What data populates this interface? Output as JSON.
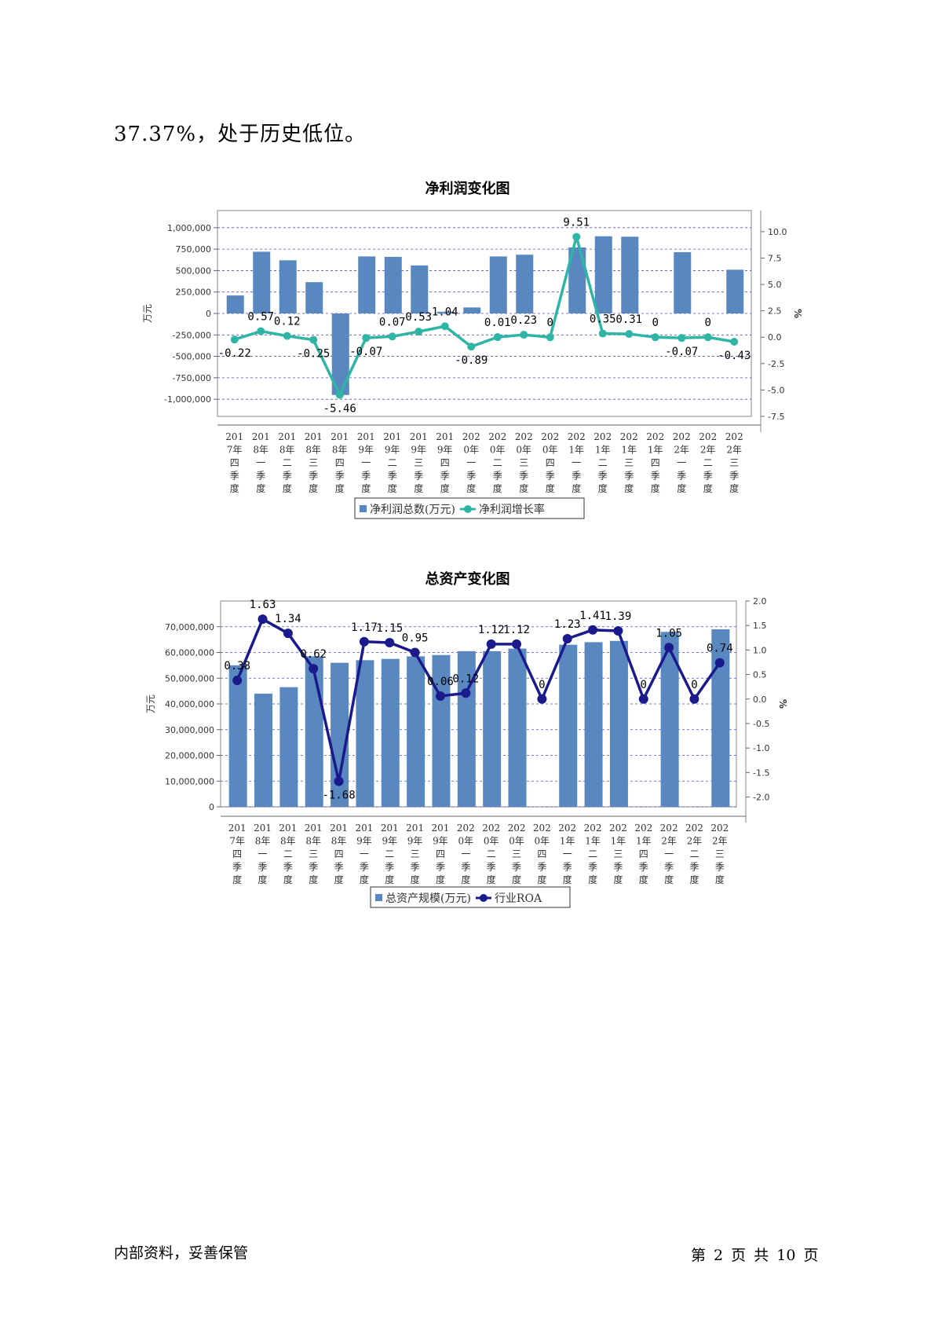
{
  "intro_text": "37.37%，处于历史低位。",
  "footer": {
    "left": "内部资料，妥善保管",
    "right": "第 2 页  共 10 页"
  },
  "chart_data": [
    {
      "type": "bar",
      "title": "净利润变化图",
      "categories": [
        "2017年四季度",
        "2018年一季度",
        "2018年二季度",
        "2018年三季度",
        "2018年四季度",
        "2019年一季度",
        "2019年二季度",
        "2019年三季度",
        "2019年四季度",
        "2020年一季度",
        "2020年二季度",
        "2020年三季度",
        "2020年四季度",
        "2021年一季度",
        "2021年二季度",
        "2021年三季度",
        "2021年四季度",
        "2022年一季度",
        "2022年二季度",
        "2022年三季度"
      ],
      "category_lines": [
        [
          "201",
          "7年",
          "四",
          "季",
          "度"
        ],
        [
          "201",
          "8年",
          "一",
          "季",
          "度"
        ],
        [
          "201",
          "8年",
          "二",
          "季",
          "度"
        ],
        [
          "201",
          "8年",
          "三",
          "季",
          "度"
        ],
        [
          "201",
          "8年",
          "四",
          "季",
          "度"
        ],
        [
          "201",
          "9年",
          "一",
          "季",
          "度"
        ],
        [
          "201",
          "9年",
          "二",
          "季",
          "度"
        ],
        [
          "201",
          "9年",
          "三",
          "季",
          "度"
        ],
        [
          "201",
          "9年",
          "四",
          "季",
          "度"
        ],
        [
          "202",
          "0年",
          "一",
          "季",
          "度"
        ],
        [
          "202",
          "0年",
          "二",
          "季",
          "度"
        ],
        [
          "202",
          "0年",
          "三",
          "季",
          "度"
        ],
        [
          "202",
          "0年",
          "四",
          "季",
          "度"
        ],
        [
          "202",
          "1年",
          "一",
          "季",
          "度"
        ],
        [
          "202",
          "1年",
          "二",
          "季",
          "度"
        ],
        [
          "202",
          "1年",
          "三",
          "季",
          "度"
        ],
        [
          "202",
          "1年",
          "四",
          "季",
          "度"
        ],
        [
          "202",
          "2年",
          "一",
          "季",
          "度"
        ],
        [
          "202",
          "2年",
          "二",
          "季",
          "度"
        ],
        [
          "202",
          "2年",
          "三",
          "季",
          "度"
        ]
      ],
      "ylabel": "万元",
      "y2label": "%",
      "ylim": [
        -1200000,
        1200000
      ],
      "y2lim": [
        -7.5,
        12
      ],
      "yticks": [
        -1000000,
        -750000,
        -500000,
        -250000,
        0,
        250000,
        500000,
        750000,
        1000000
      ],
      "ytick_labels": [
        "-1,000,000",
        "-750,000",
        "-500,000",
        "-250,000",
        "0",
        "250,000",
        "500,000",
        "750,000",
        "1,000,000"
      ],
      "y2ticks": [
        -7.5,
        -5,
        -2.5,
        0,
        2.5,
        5,
        7.5,
        10
      ],
      "y2tick_labels": [
        "-7.5",
        "-5.0",
        "-2.5",
        "0.0",
        "2.5",
        "5.0",
        "7.5",
        "10.0"
      ],
      "grid": true,
      "legend_position": "bottom",
      "series": [
        {
          "name": "净利润总数(万元)",
          "kind": "bar",
          "axis": "left",
          "values": [
            210000,
            720000,
            620000,
            365000,
            -950000,
            665000,
            660000,
            560000,
            20000,
            70000,
            665000,
            685000,
            0,
            770000,
            900000,
            895000,
            0,
            715000,
            0,
            510000
          ]
        },
        {
          "name": "净利润增长率",
          "kind": "line",
          "axis": "right",
          "values": [
            -0.22,
            0.57,
            0.12,
            -0.25,
            -5.46,
            -0.07,
            0.07,
            0.53,
            1.04,
            -0.89,
            0.01,
            0.23,
            0,
            9.51,
            0.35,
            0.31,
            0,
            -0.07,
            0,
            -0.43
          ],
          "labels": [
            "-0.22",
            "0.57",
            "0.12",
            "-0.25",
            "-5.46",
            "-0.07",
            "0.07",
            "0.53",
            "1.04",
            "-0.89",
            "0.01",
            "0.23",
            "0",
            "9.51",
            "0.35",
            "0.31",
            "0",
            "-0.07",
            "0",
            "-0.43"
          ]
        }
      ],
      "colors": {
        "bar": "#5888bf",
        "line": "#2eb5a6"
      }
    },
    {
      "type": "bar",
      "title": "总资产变化图",
      "categories": [
        "2017年四季度",
        "2018年一季度",
        "2018年二季度",
        "2018年三季度",
        "2018年四季度",
        "2019年一季度",
        "2019年二季度",
        "2019年三季度",
        "2019年四季度",
        "2020年一季度",
        "2020年二季度",
        "2020年三季度",
        "2020年四季度",
        "2021年一季度",
        "2021年二季度",
        "2021年三季度",
        "2021年四季度",
        "2022年一季度",
        "2022年二季度",
        "2022年三季度"
      ],
      "category_lines": [
        [
          "201",
          "7年",
          "四",
          "季",
          "度"
        ],
        [
          "201",
          "8年",
          "一",
          "季",
          "度"
        ],
        [
          "201",
          "8年",
          "二",
          "季",
          "度"
        ],
        [
          "201",
          "8年",
          "三",
          "季",
          "度"
        ],
        [
          "201",
          "8年",
          "四",
          "季",
          "度"
        ],
        [
          "201",
          "9年",
          "一",
          "季",
          "度"
        ],
        [
          "201",
          "9年",
          "二",
          "季",
          "度"
        ],
        [
          "201",
          "9年",
          "三",
          "季",
          "度"
        ],
        [
          "201",
          "9年",
          "四",
          "季",
          "度"
        ],
        [
          "202",
          "0年",
          "一",
          "季",
          "度"
        ],
        [
          "202",
          "0年",
          "二",
          "季",
          "度"
        ],
        [
          "202",
          "0年",
          "三",
          "季",
          "度"
        ],
        [
          "202",
          "0年",
          "四",
          "季",
          "度"
        ],
        [
          "202",
          "1年",
          "一",
          "季",
          "度"
        ],
        [
          "202",
          "1年",
          "二",
          "季",
          "度"
        ],
        [
          "202",
          "1年",
          "三",
          "季",
          "度"
        ],
        [
          "202",
          "1年",
          "四",
          "季",
          "度"
        ],
        [
          "202",
          "2年",
          "一",
          "季",
          "度"
        ],
        [
          "202",
          "2年",
          "二",
          "季",
          "度"
        ],
        [
          "202",
          "2年",
          "三",
          "季",
          "度"
        ]
      ],
      "ylabel": "万元",
      "y2label": "%",
      "ylim": [
        0,
        80000000
      ],
      "y2lim": [
        -2.2,
        2.0
      ],
      "yticks": [
        0,
        10000000,
        20000000,
        30000000,
        40000000,
        50000000,
        60000000,
        70000000
      ],
      "ytick_labels": [
        "0",
        "10,000,000",
        "20,000,000",
        "30,000,000",
        "40,000,000",
        "50,000,000",
        "60,000,000",
        "70,000,000"
      ],
      "y2ticks": [
        -2,
        -1.5,
        -1,
        -0.5,
        0,
        0.5,
        1,
        1.5,
        2
      ],
      "y2tick_labels": [
        "-2.0",
        "-1.5",
        "-1.0",
        "-0.5",
        "0.0",
        "0.5",
        "1.0",
        "1.5",
        "2.0"
      ],
      "grid": true,
      "legend_position": "bottom",
      "series": [
        {
          "name": "总资产规模(万元)",
          "kind": "bar",
          "axis": "left",
          "values": [
            55000000,
            44000000,
            46500000,
            58500000,
            56000000,
            57000000,
            57500000,
            58500000,
            59000000,
            60500000,
            60500000,
            61500000,
            0,
            63000000,
            64000000,
            64500000,
            0,
            68000000,
            0,
            69000000
          ]
        },
        {
          "name": "行业ROA",
          "kind": "line",
          "axis": "right",
          "values": [
            0.38,
            1.63,
            1.34,
            0.62,
            -1.68,
            1.17,
            1.15,
            0.95,
            0.06,
            0.12,
            1.12,
            1.12,
            0,
            1.23,
            1.41,
            1.39,
            0,
            1.05,
            0,
            0.74
          ],
          "labels": [
            "0.38",
            "1.63",
            "1.34",
            "0.62",
            "-1.68",
            "1.17",
            "1.15",
            "0.95",
            "0.06",
            "0.12",
            "1.12",
            "1.12",
            "0",
            "1.23",
            "1.41",
            "1.39",
            "0",
            "1.05",
            "0",
            "0.74"
          ]
        }
      ],
      "colors": {
        "bar": "#5888bf",
        "line": "#1a1a8c"
      }
    }
  ]
}
